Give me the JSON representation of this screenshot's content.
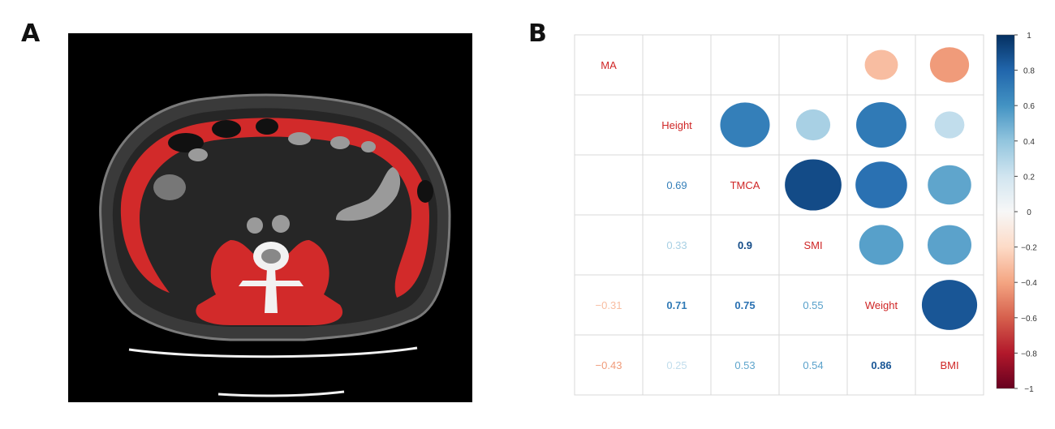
{
  "panels": {
    "a_label": "A",
    "b_label": "B"
  },
  "colors": {
    "ct_background": "#000000",
    "muscle_overlay": "#d22a2a",
    "positive_strong": "#134b8a",
    "negative_strong": "#b2182b",
    "grid_line": "#d9d9d9",
    "diagonal_text": "#cf2626"
  },
  "chart_data": {
    "type": "heatmap",
    "variables": [
      "MA",
      "Height",
      "TMCA",
      "SMI",
      "Weight",
      "BMI"
    ],
    "upper_triangle_style": "circle",
    "lower_triangle_style": "number",
    "matrix": [
      [
        1,
        null,
        null,
        null,
        -0.31,
        -0.43
      ],
      [
        null,
        1,
        0.69,
        0.33,
        0.71,
        0.25
      ],
      [
        null,
        0.69,
        1,
        0.9,
        0.75,
        0.53
      ],
      [
        null,
        0.33,
        0.9,
        1,
        0.55,
        0.54
      ],
      [
        -0.31,
        0.71,
        0.75,
        0.55,
        1,
        0.86
      ],
      [
        -0.43,
        0.25,
        0.53,
        0.54,
        0.86,
        1
      ]
    ],
    "lower_labels": [
      {
        "row": 2,
        "col": 1,
        "text": "0.69"
      },
      {
        "row": 3,
        "col": 1,
        "text": "0.33"
      },
      {
        "row": 3,
        "col": 2,
        "text": "0.9"
      },
      {
        "row": 4,
        "col": 0,
        "text": "−0.31"
      },
      {
        "row": 4,
        "col": 1,
        "text": "0.71"
      },
      {
        "row": 4,
        "col": 2,
        "text": "0.75"
      },
      {
        "row": 4,
        "col": 3,
        "text": "0.55"
      },
      {
        "row": 5,
        "col": 0,
        "text": "−0.43"
      },
      {
        "row": 5,
        "col": 1,
        "text": "0.25"
      },
      {
        "row": 5,
        "col": 2,
        "text": "0.53"
      },
      {
        "row": 5,
        "col": 3,
        "text": "0.54"
      },
      {
        "row": 5,
        "col": 4,
        "text": "0.86"
      }
    ],
    "colorbar": {
      "min": -1,
      "max": 1,
      "ticks": [
        {
          "value": 1,
          "label": "1"
        },
        {
          "value": 0.8,
          "label": "0.8"
        },
        {
          "value": 0.6,
          "label": "0.6"
        },
        {
          "value": 0.4,
          "label": "0.4"
        },
        {
          "value": 0.2,
          "label": "0.2"
        },
        {
          "value": 0,
          "label": "0"
        },
        {
          "value": -0.2,
          "label": "−0.2"
        },
        {
          "value": -0.4,
          "label": "−0.4"
        },
        {
          "value": -0.6,
          "label": "−0.6"
        },
        {
          "value": -0.8,
          "label": "−0.8"
        },
        {
          "value": -1,
          "label": "−1"
        }
      ]
    }
  }
}
